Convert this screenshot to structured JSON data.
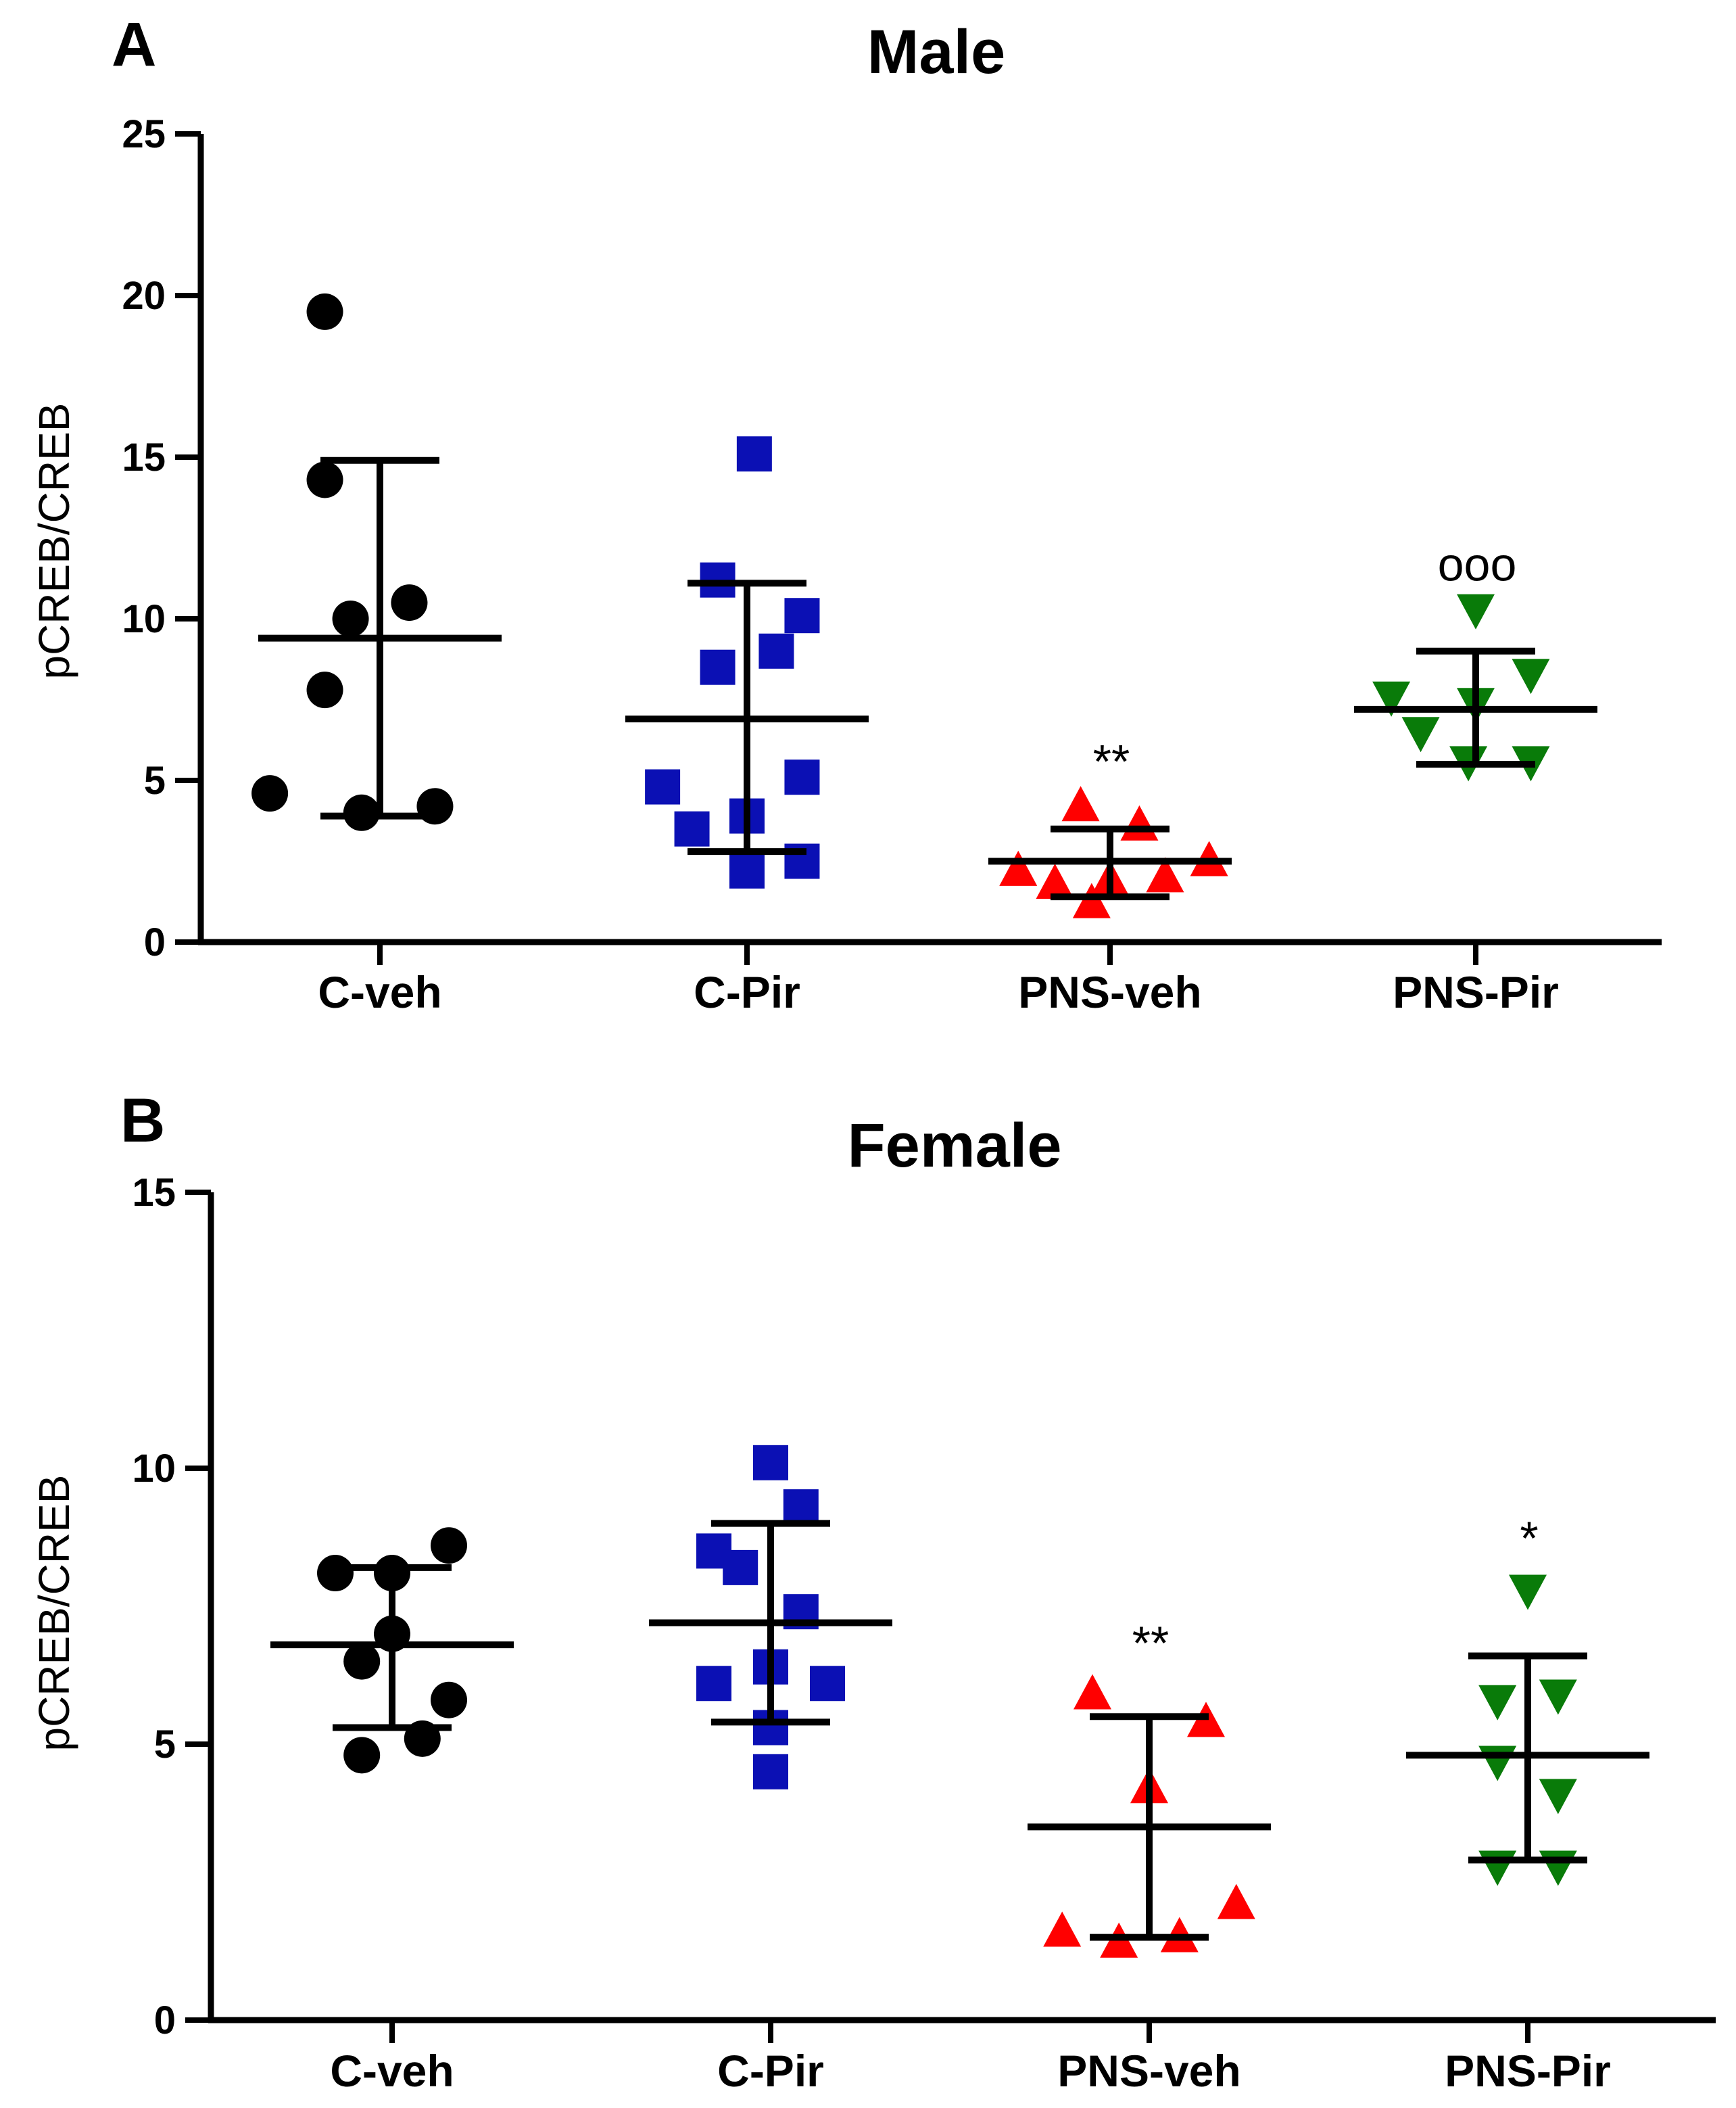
{
  "chart_data": [
    {
      "type": "scatter",
      "panel": "A",
      "title": "Male",
      "ylabel": "pCREB/CREB",
      "xlabel": "",
      "ylim": [
        0,
        25
      ],
      "yticks": [
        "0",
        "5",
        "10",
        "15",
        "20",
        "25"
      ],
      "grid": false,
      "categories": [
        "C-veh",
        "C-Pir",
        "PNS-veh",
        "PNS-Pir"
      ],
      "series": [
        {
          "name": "C-veh",
          "marker": "circle",
          "color": "#000000",
          "points": [
            [
              -0.15,
              19.5
            ],
            [
              -0.15,
              14.3
            ],
            [
              0.08,
              10.5
            ],
            [
              -0.08,
              10.0
            ],
            [
              -0.15,
              7.8
            ],
            [
              -0.3,
              4.6
            ],
            [
              0.15,
              4.2
            ],
            [
              -0.05,
              4.0
            ]
          ],
          "mean": 9.4,
          "sd_low": 3.9,
          "sd_high": 14.9,
          "annotation": ""
        },
        {
          "name": "C-Pir",
          "marker": "square",
          "color": "#0b10b4",
          "points": [
            [
              0.02,
              15.1
            ],
            [
              -0.08,
              11.2
            ],
            [
              0.15,
              10.1
            ],
            [
              0.08,
              9.0
            ],
            [
              -0.08,
              8.5
            ],
            [
              -0.23,
              4.8
            ],
            [
              0.15,
              5.1
            ],
            [
              0.0,
              3.9
            ],
            [
              -0.15,
              3.5
            ],
            [
              0.15,
              2.5
            ],
            [
              0.0,
              2.2
            ]
          ],
          "mean": 6.9,
          "sd_low": 2.8,
          "sd_high": 11.1,
          "annotation": ""
        },
        {
          "name": "PNS-veh",
          "marker": "triangle-up",
          "color": "#ff0000",
          "points": [
            [
              -0.08,
              4.2
            ],
            [
              0.08,
              3.6
            ],
            [
              -0.25,
              2.2
            ],
            [
              -0.15,
              1.8
            ],
            [
              0.0,
              1.9
            ],
            [
              0.15,
              2.0
            ],
            [
              0.27,
              2.5
            ],
            [
              -0.05,
              1.2
            ]
          ],
          "mean": 2.5,
          "sd_low": 1.4,
          "sd_high": 3.5,
          "annotation": "**"
        },
        {
          "name": "PNS-Pir",
          "marker": "triangle-down",
          "color": "#097b09",
          "points": [
            [
              0.0,
              10.3
            ],
            [
              -0.23,
              7.6
            ],
            [
              0.0,
              7.4
            ],
            [
              0.15,
              8.3
            ],
            [
              -0.15,
              6.5
            ],
            [
              -0.02,
              5.6
            ],
            [
              0.15,
              5.6
            ]
          ],
          "mean": 7.2,
          "sd_low": 5.5,
          "sd_high": 9.0,
          "annotation": "ooo"
        }
      ]
    },
    {
      "type": "scatter",
      "panel": "B",
      "title": "Female",
      "ylabel": "pCREB/CREB",
      "xlabel": "",
      "ylim": [
        0,
        15
      ],
      "yticks": [
        "0",
        "5",
        "10",
        "15"
      ],
      "grid": false,
      "categories": [
        "C-veh",
        "C-Pir",
        "PNS-veh",
        "PNS-Pir"
      ],
      "series": [
        {
          "name": "C-veh",
          "marker": "circle",
          "color": "#000000",
          "points": [
            [
              -0.15,
              8.1
            ],
            [
              0.0,
              8.1
            ],
            [
              0.15,
              8.6
            ],
            [
              0.0,
              7.0
            ],
            [
              -0.08,
              6.5
            ],
            [
              0.15,
              5.8
            ],
            [
              -0.08,
              4.8
            ],
            [
              0.08,
              5.1
            ]
          ],
          "mean": 6.8,
          "sd_low": 5.3,
          "sd_high": 8.2,
          "annotation": ""
        },
        {
          "name": "C-Pir",
          "marker": "square",
          "color": "#0b10b4",
          "points": [
            [
              0.0,
              10.1
            ],
            [
              0.08,
              9.3
            ],
            [
              -0.15,
              8.5
            ],
            [
              -0.08,
              8.2
            ],
            [
              0.08,
              7.4
            ],
            [
              -0.15,
              6.1
            ],
            [
              0.0,
              6.4
            ],
            [
              0.15,
              6.1
            ],
            [
              0.0,
              5.3
            ],
            [
              0.0,
              4.5
            ]
          ],
          "mean": 7.2,
          "sd_low": 5.4,
          "sd_high": 9.0,
          "annotation": ""
        },
        {
          "name": "PNS-veh",
          "marker": "triangle-up",
          "color": "#ff0000",
          "points": [
            [
              -0.15,
              5.9
            ],
            [
              0.15,
              5.4
            ],
            [
              0.0,
              4.2
            ],
            [
              -0.23,
              1.6
            ],
            [
              0.23,
              2.1
            ],
            [
              -0.08,
              1.4
            ],
            [
              0.08,
              1.5
            ]
          ],
          "mean": 3.5,
          "sd_low": 1.5,
          "sd_high": 5.5,
          "annotation": "**"
        },
        {
          "name": "PNS-Pir",
          "marker": "triangle-down",
          "color": "#097b09",
          "points": [
            [
              0.0,
              7.8
            ],
            [
              -0.08,
              5.8
            ],
            [
              0.08,
              5.9
            ],
            [
              -0.08,
              4.7
            ],
            [
              0.08,
              4.1
            ],
            [
              -0.08,
              2.8
            ],
            [
              0.08,
              2.8
            ]
          ],
          "mean": 4.8,
          "sd_low": 2.9,
          "sd_high": 6.6,
          "annotation": "*"
        }
      ]
    }
  ]
}
